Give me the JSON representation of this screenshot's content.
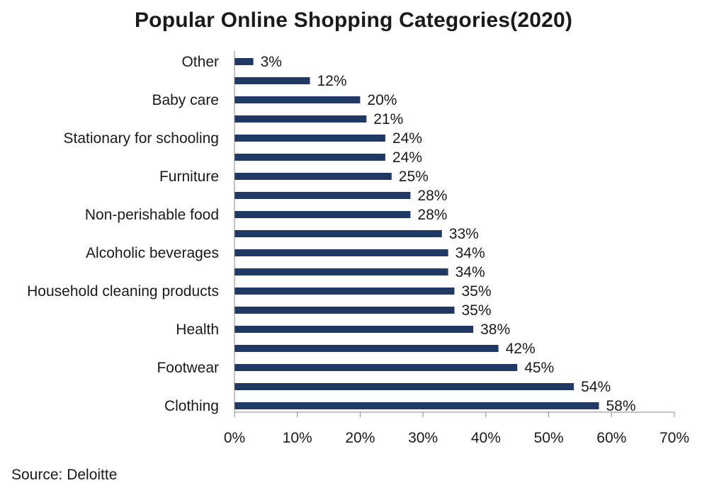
{
  "chart_data": {
    "type": "bar",
    "orientation": "horizontal",
    "title": "Popular Online Shopping Categories(2020)",
    "categories": [
      "Clothing",
      "",
      "Footwear",
      "",
      "Health",
      "",
      "Household cleaning products",
      "",
      "Alcoholic beverages",
      "",
      "Non-perishable food",
      "",
      "Furniture",
      "",
      "Stationary for schooling",
      "",
      "Baby care",
      "",
      "Other"
    ],
    "values": [
      58,
      54,
      45,
      42,
      38,
      35,
      35,
      34,
      34,
      33,
      28,
      28,
      25,
      24,
      24,
      21,
      20,
      12,
      3
    ],
    "value_labels": [
      "58%",
      "54%",
      "45%",
      "42%",
      "38%",
      "35%",
      "35%",
      "34%",
      "34%",
      "33%",
      "28%",
      "28%",
      "25%",
      "24%",
      "24%",
      "21%",
      "20%",
      "12%",
      "3%"
    ],
    "xlim": [
      0,
      70
    ],
    "x_ticks": [
      "0%",
      "10%",
      "20%",
      "30%",
      "40%",
      "50%",
      "60%",
      "70%"
    ],
    "bar_color": "#1f3864",
    "grid": false
  },
  "source": "Source: Deloitte"
}
